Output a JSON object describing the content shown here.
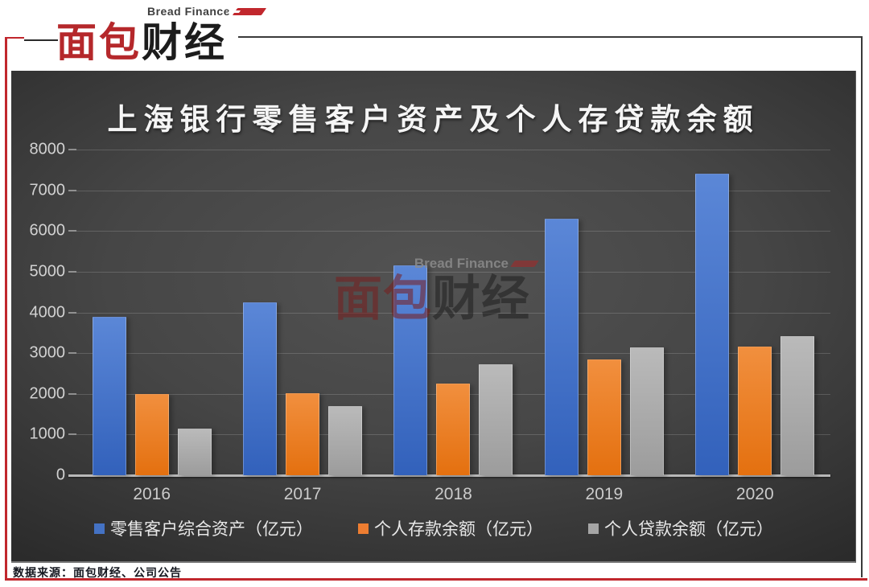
{
  "logo": {
    "brand_en": "Bread Finance",
    "brand_cn_red": "面包",
    "brand_cn_dark": "财经"
  },
  "watermark": {
    "brand_en": "Bread Finance",
    "brand_cn_red": "面包",
    "brand_cn_dark": "财经"
  },
  "footer": {
    "source": "数据来源：面包财经、公司公告"
  },
  "chart_data": {
    "type": "bar",
    "title": "上海银行零售客户资产及个人存贷款余额",
    "categories": [
      "2016",
      "2017",
      "2018",
      "2019",
      "2020"
    ],
    "series": [
      {
        "name": "零售客户综合资产（亿元）",
        "color": "#4472c4",
        "gradient": [
          "#5b87d7",
          "#3261bb"
        ],
        "values": [
          3900,
          4250,
          5150,
          6300,
          7400
        ]
      },
      {
        "name": "个人存款余额（亿元）",
        "color": "#ed7d31",
        "gradient": [
          "#f18f3e",
          "#e4700f"
        ],
        "values": [
          2000,
          2020,
          2250,
          2850,
          3170
        ]
      },
      {
        "name": "个人贷款余额（亿元）",
        "color": "#a5a5a5",
        "gradient": [
          "#bababa",
          "#9c9c9c"
        ],
        "values": [
          1150,
          1700,
          2720,
          3140,
          3420
        ]
      }
    ],
    "ylim": [
      0,
      8000
    ],
    "ytick_interval": 1000,
    "grid": true,
    "legend_position": "bottom",
    "units": "亿元"
  }
}
